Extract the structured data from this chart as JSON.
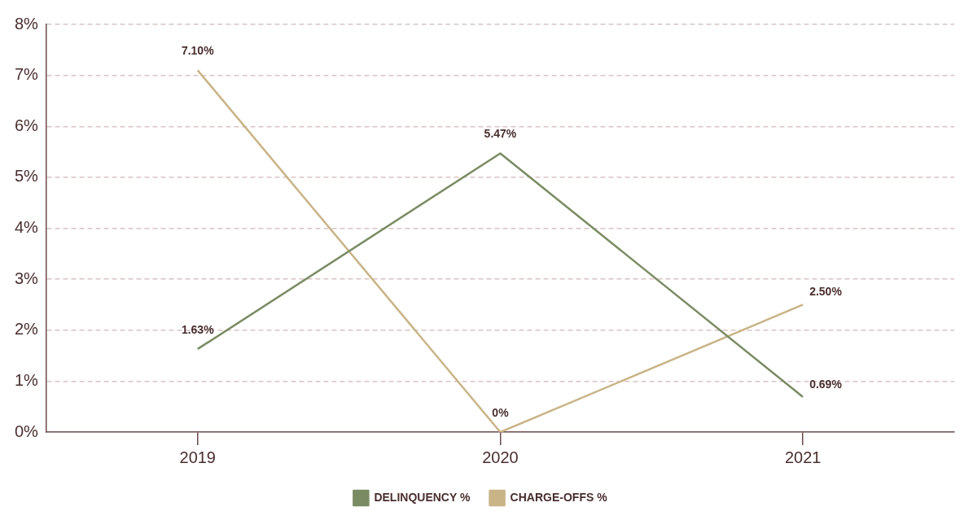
{
  "chart_data": {
    "type": "line",
    "categories": [
      "2019",
      "2020",
      "2021"
    ],
    "series": [
      {
        "name": "DELINQUENCY %",
        "color": "#7a8b63",
        "values": [
          1.63,
          5.47,
          0.69
        ],
        "value_labels": [
          "1.63%",
          "5.47%",
          "0.69%"
        ]
      },
      {
        "name": "CHARGE-OFFS %",
        "color": "#c9b487",
        "values": [
          7.1,
          0,
          2.5
        ],
        "value_labels": [
          "7.10%",
          "0%",
          "2.50%"
        ]
      }
    ],
    "ylim": [
      0,
      8
    ],
    "yticks": [
      {
        "value": 0,
        "label": "0%"
      },
      {
        "value": 1,
        "label": "1%"
      },
      {
        "value": 2,
        "label": "2%"
      },
      {
        "value": 3,
        "label": "3%"
      },
      {
        "value": 4,
        "label": "4%"
      },
      {
        "value": 5,
        "label": "5%"
      },
      {
        "value": 6,
        "label": "6%"
      },
      {
        "value": 7,
        "label": "7%"
      },
      {
        "value": 8,
        "label": "8%"
      }
    ],
    "grid": "y",
    "legend": "bottom",
    "marker": "none",
    "line_style": "solid"
  }
}
